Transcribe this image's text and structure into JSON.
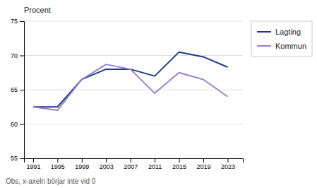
{
  "chart_data": {
    "type": "line",
    "ylabel": "Procent",
    "annotations": [
      "Obs, x-axeln börjar inte vid 0"
    ],
    "x": [
      1991,
      1995,
      1999,
      2003,
      2007,
      2011,
      2015,
      2019,
      2023
    ],
    "series": [
      {
        "name": "Lagting",
        "color": "#1a3a8c",
        "values": [
          62.5,
          62.5,
          66.5,
          68.0,
          68.0,
          67.0,
          70.5,
          69.8,
          68.3
        ]
      },
      {
        "name": "Kommun",
        "color": "#9b82c9",
        "values": [
          62.5,
          62.0,
          66.5,
          68.7,
          68.0,
          64.5,
          67.5,
          66.5,
          64.0
        ]
      }
    ],
    "xlim": [
      1989.5,
      2025.5
    ],
    "ylim": [
      55,
      75
    ],
    "xticks": [
      1991,
      1995,
      1999,
      2003,
      2007,
      2011,
      2015,
      2019,
      2023
    ],
    "yticks": [
      55,
      60,
      65,
      70,
      75
    ],
    "grid": true,
    "legend": "right"
  }
}
